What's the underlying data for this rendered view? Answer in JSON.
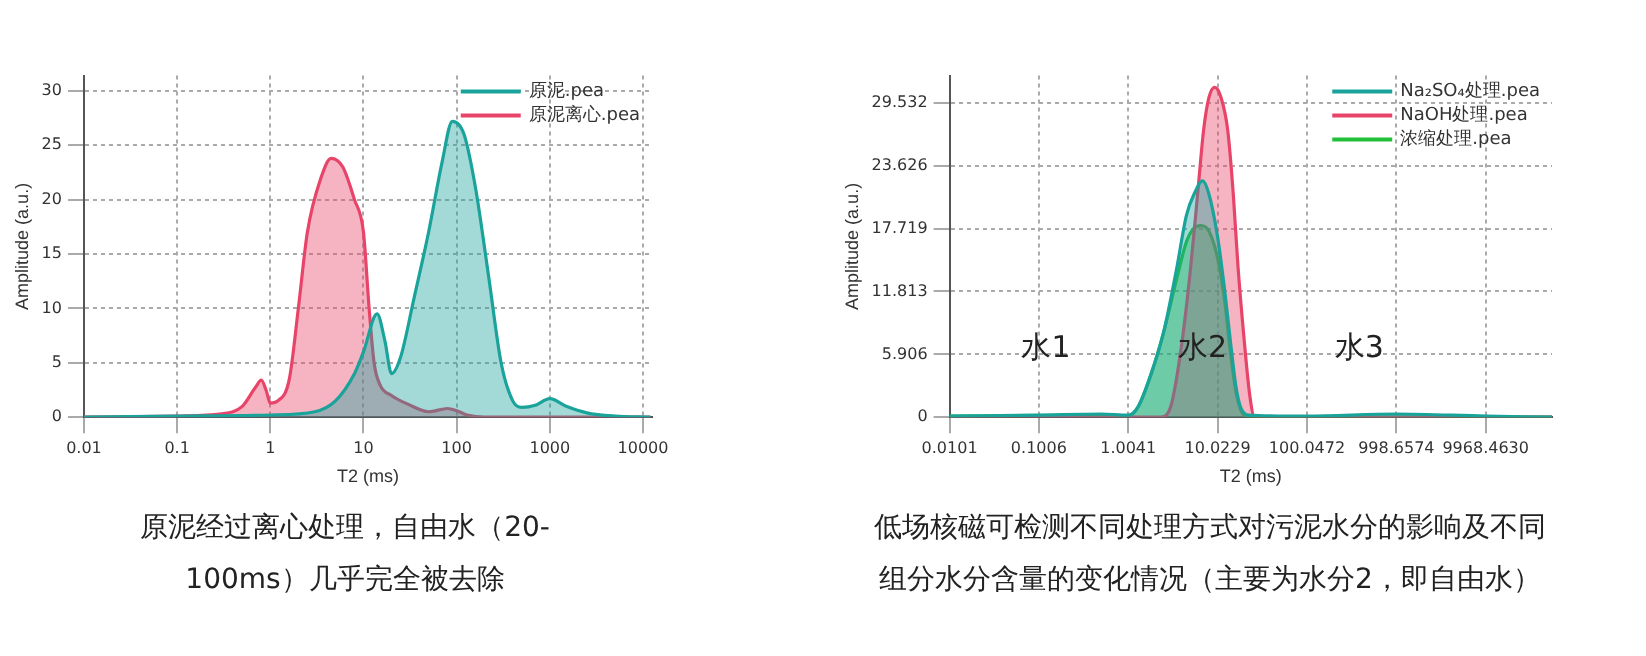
{
  "chart_data": [
    {
      "type": "area",
      "xlabel": "T2 (ms)",
      "ylabel": "Amplitude (a.u.)",
      "log": "x",
      "grid": true,
      "legend": "top right",
      "xlim": [
        0.01,
        12500
      ],
      "ylim": [
        0,
        31.4
      ],
      "xticks": [
        0.01,
        0.1,
        1,
        10,
        100,
        1000,
        10000
      ],
      "yticks": [
        0,
        5,
        10,
        15,
        20,
        25,
        30
      ],
      "series": [
        {
          "name": "原泥.pea",
          "color": "#1aa39a",
          "x": [
            0.01,
            0.1,
            1,
            3,
            5,
            8,
            10,
            14,
            17,
            20,
            25,
            35,
            50,
            70,
            90,
            120,
            160,
            220,
            300,
            400,
            500,
            700,
            1000,
            1500,
            2500,
            5000,
            12000
          ],
          "values": [
            0,
            0.1,
            0.2,
            0.5,
            1.5,
            4,
            6,
            9.5,
            7,
            4,
            5.5,
            11,
            17,
            23.5,
            27.2,
            26,
            21,
            13,
            5,
            1.5,
            0.9,
            1.1,
            1.7,
            1.0,
            0.4,
            0.1,
            0
          ]
        },
        {
          "name": "原泥离心.pea",
          "color": "#e8446a",
          "x": [
            0.01,
            0.1,
            0.3,
            0.5,
            0.7,
            0.8,
            0.9,
            1.0,
            1.2,
            1.6,
            2,
            2.5,
            3.5,
            4.5,
            6,
            8,
            10,
            11.5,
            13,
            15,
            20,
            30,
            50,
            80,
            100,
            130,
            200,
            1000,
            12000
          ],
          "values": [
            0,
            0.1,
            0.3,
            1.0,
            2.8,
            3.4,
            2.5,
            1.3,
            1.5,
            3.5,
            10,
            17,
            22,
            23.8,
            23,
            20,
            17,
            10,
            5,
            3,
            2,
            1.2,
            0.5,
            0.8,
            0.6,
            0.2,
            0,
            0,
            0
          ]
        }
      ],
      "annotations": [
        "原泥经过离心处理，自由水（20-100ms）几乎完全被去除"
      ]
    },
    {
      "type": "area",
      "xlabel": "T2 (ms)",
      "ylabel": "Amplitude (a.u.)",
      "log": "x",
      "grid": true,
      "legend": "top right",
      "xlim": [
        0.0101,
        55000
      ],
      "ylim": [
        0,
        32.1
      ],
      "xticks": [
        0.0101,
        0.1006,
        1.0041,
        10.0229,
        100.0472,
        998.6574,
        {
          "value": 9968.463,
          "label": "9968.4630"
        }
      ],
      "yticks": [
        0,
        5.906,
        11.813,
        17.719,
        23.626,
        29.532
      ],
      "series": [
        {
          "name": "Na₂SO₄处理.pea",
          "color": "#1aa39a",
          "x": [
            0.0101,
            0.1,
            0.5,
            1.0,
            1.3,
            1.8,
            2.5,
            3.5,
            4.5,
            5.5,
            6.8,
            8,
            10,
            12,
            14,
            16,
            18,
            22,
            100,
            1000,
            10000,
            55000
          ],
          "values": [
            0.1,
            0.2,
            0.3,
            0.2,
            1,
            4,
            8,
            14,
            19,
            21,
            22.2,
            21,
            17,
            12,
            7,
            3,
            1,
            0.2,
            0.1,
            0.3,
            0.1,
            0
          ]
        },
        {
          "name": "NaOH处理.pea",
          "color": "#e8446a",
          "x": [
            0.0101,
            1,
            2.3,
            3,
            4,
            5,
            6,
            7,
            8,
            9.3,
            11,
            13,
            15,
            17,
            20,
            23,
            26,
            100,
            55000
          ],
          "values": [
            0,
            0,
            0,
            1,
            7,
            14,
            21,
            27,
            30,
            31,
            30,
            27,
            21,
            14,
            7,
            2,
            0,
            0,
            0
          ]
        },
        {
          "name": "浓缩处理.pea",
          "color": "#22c03a",
          "x": [
            0.0101,
            0.5,
            1.0,
            1.3,
            1.8,
            2.5,
            3.5,
            4.5,
            5.5,
            6.5,
            8,
            10,
            12,
            14,
            16,
            18,
            20,
            30,
            55000
          ],
          "values": [
            0.1,
            0.2,
            0.1,
            1,
            4,
            8,
            13,
            16.5,
            17.8,
            18,
            17.5,
            15,
            11,
            6,
            2.5,
            0.8,
            0.2,
            0,
            0
          ]
        }
      ],
      "annotations": [
        "水1",
        "水2",
        "水3",
        "低场核磁可检测不同处理方式对污泥水分的影响及不同组分水分含量的变化情况（主要为水分2，即自由水）"
      ]
    }
  ]
}
